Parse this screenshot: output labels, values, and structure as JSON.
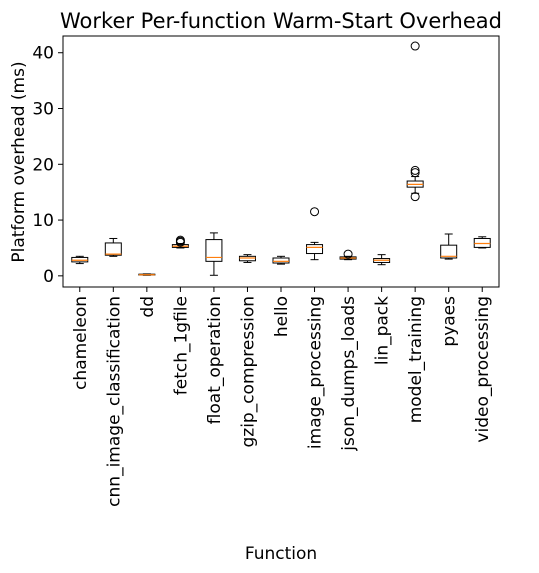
{
  "chart_data": {
    "type": "box",
    "title": "Worker Per-function Warm-Start Overhead",
    "xlabel": "Function",
    "ylabel": "Platform overhead (ms)",
    "ylim": [
      -2,
      43
    ],
    "yticks": [
      0,
      10,
      20,
      30,
      40
    ],
    "grid": false,
    "colors": {
      "box": "#000000",
      "median": "#ff7f0e",
      "flier": "#000000"
    },
    "categories": [
      "chameleon",
      "cnn_image_classification",
      "dd",
      "fetch_1gfile",
      "float_operation",
      "gzip_compression",
      "hello",
      "image_processing",
      "json_dumps_loads",
      "lin_pack",
      "model_training",
      "pyaes",
      "video_processing"
    ],
    "boxes": [
      {
        "name": "chameleon",
        "whislo": 2.2,
        "q1": 2.5,
        "med": 2.8,
        "q3": 3.3,
        "whishi": 3.5,
        "fliers": []
      },
      {
        "name": "cnn_image_classification",
        "whislo": 3.5,
        "q1": 3.7,
        "med": 3.9,
        "q3": 5.9,
        "whishi": 6.7,
        "fliers": []
      },
      {
        "name": "dd",
        "whislo": 0.1,
        "q1": 0.15,
        "med": 0.2,
        "q3": 0.3,
        "whishi": 0.35,
        "fliers": []
      },
      {
        "name": "fetch_1gfile",
        "whislo": 5.0,
        "q1": 5.1,
        "med": 5.3,
        "q3": 5.6,
        "whishi": 5.8,
        "fliers": [
          6.0,
          6.2,
          6.4
        ]
      },
      {
        "name": "float_operation",
        "whislo": 0.1,
        "q1": 2.6,
        "med": 3.3,
        "q3": 6.5,
        "whishi": 7.7,
        "fliers": []
      },
      {
        "name": "gzip_compression",
        "whislo": 2.4,
        "q1": 2.7,
        "med": 3.2,
        "q3": 3.5,
        "whishi": 3.8,
        "fliers": []
      },
      {
        "name": "hello",
        "whislo": 2.1,
        "q1": 2.3,
        "med": 2.6,
        "q3": 3.2,
        "whishi": 3.5,
        "fliers": []
      },
      {
        "name": "image_processing",
        "whislo": 2.9,
        "q1": 4.0,
        "med": 5.1,
        "q3": 5.6,
        "whishi": 6.0,
        "fliers": [
          11.5
        ]
      },
      {
        "name": "json_dumps_loads",
        "whislo": 2.9,
        "q1": 3.0,
        "med": 3.2,
        "q3": 3.4,
        "whishi": 3.5,
        "fliers": [
          3.9
        ]
      },
      {
        "name": "lin_pack",
        "whislo": 2.0,
        "q1": 2.4,
        "med": 2.8,
        "q3": 3.1,
        "whishi": 3.8,
        "fliers": []
      },
      {
        "name": "model_training",
        "whislo": 14.8,
        "q1": 15.9,
        "med": 16.4,
        "q3": 17.0,
        "whishi": 17.8,
        "fliers": [
          14.2,
          18.5,
          18.9,
          41.2
        ]
      },
      {
        "name": "pyaes",
        "whislo": 3.0,
        "q1": 3.2,
        "med": 3.5,
        "q3": 5.5,
        "whishi": 7.5,
        "fliers": []
      },
      {
        "name": "video_processing",
        "whislo": 5.0,
        "q1": 5.1,
        "med": 5.8,
        "q3": 6.7,
        "whishi": 7.0,
        "fliers": []
      }
    ]
  }
}
